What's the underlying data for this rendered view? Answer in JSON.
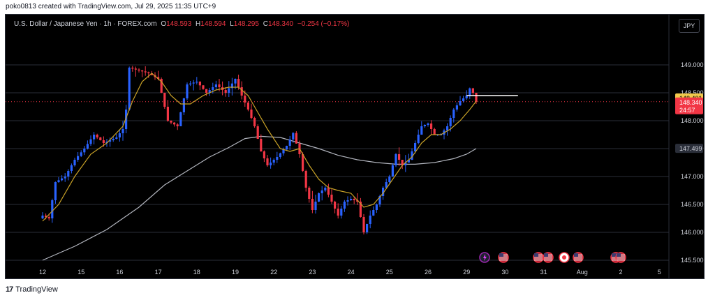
{
  "header": {
    "credit": "poko0813 created with TradingView.com, Jul 29, 2025 11:35 UTC+9"
  },
  "legend": {
    "symbol": "U.S. Dollar / Japanese Yen · 1h · FOREX.com",
    "o_label": "O",
    "o": "148.593",
    "h_label": "H",
    "h": "148.594",
    "l_label": "L",
    "l": "148.295",
    "c_label": "C",
    "c": "148.340",
    "change": "−0.254 (−0.17%)"
  },
  "currency_button": "JPY",
  "footer": {
    "brand": "TradingView",
    "brand_mark": "17"
  },
  "colors": {
    "background": "#000000",
    "up": "#2962ff",
    "down": "#f23645",
    "ma_fast": "#c9a227",
    "ma_slow": "#b2b5be",
    "grid": "#2a2e39",
    "marker_line": "#ffffff"
  },
  "price_labels": {
    "ma_fast_value": "148.401",
    "last_price": "148.340",
    "countdown": "24:57",
    "ma_slow_value": "147.499"
  },
  "event_icons": [
    "lightning-icon",
    "us-flag-icon",
    "us-flag-icon",
    "us-flag-icon",
    "jp-flag-icon",
    "us-flag-icon",
    "us-flag-icon",
    "us-flag-icon"
  ],
  "chart_data": {
    "type": "candlestick",
    "instrument": "U.S. Dollar / Japanese Yen",
    "timeframe": "1h",
    "source": "FOREX.com",
    "ylim": [
      145.45,
      149.6
    ],
    "y_ticks": [
      "149.000",
      "148.500",
      "148.000",
      "147.500",
      "147.000",
      "146.500",
      "146.000",
      "145.500"
    ],
    "x_ticks": [
      "12",
      "15",
      "16",
      "17",
      "18",
      "19",
      "22",
      "23",
      "24",
      "25",
      "26",
      "29",
      "30",
      "31",
      "Aug",
      "2",
      "5"
    ],
    "x_tick_index": [
      0,
      12,
      24,
      36,
      48,
      60,
      72,
      84,
      96,
      108,
      120,
      132,
      144,
      156,
      168,
      180,
      192
    ],
    "anchors": [
      [
        0,
        146.3
      ],
      [
        2,
        146.25
      ],
      [
        4,
        146.9
      ],
      [
        7,
        147.0
      ],
      [
        10,
        147.3
      ],
      [
        13,
        147.5
      ],
      [
        16,
        147.75
      ],
      [
        19,
        147.6
      ],
      [
        21,
        147.65
      ],
      [
        23,
        147.7
      ],
      [
        25,
        147.85
      ],
      [
        26,
        148.2
      ],
      [
        27,
        148.95
      ],
      [
        30,
        148.9
      ],
      [
        33,
        148.85
      ],
      [
        36,
        148.75
      ],
      [
        39,
        148.0
      ],
      [
        42,
        147.9
      ],
      [
        45,
        148.65
      ],
      [
        48,
        148.7
      ],
      [
        51,
        148.5
      ],
      [
        54,
        148.65
      ],
      [
        57,
        148.5
      ],
      [
        60,
        148.75
      ],
      [
        62,
        148.45
      ],
      [
        64,
        148.2
      ],
      [
        66,
        147.9
      ],
      [
        68,
        147.45
      ],
      [
        70,
        147.2
      ],
      [
        73,
        147.35
      ],
      [
        76,
        147.55
      ],
      [
        78,
        147.78
      ],
      [
        80,
        147.4
      ],
      [
        82,
        146.8
      ],
      [
        84,
        146.4
      ],
      [
        86,
        146.7
      ],
      [
        88,
        146.8
      ],
      [
        90,
        146.55
      ],
      [
        92,
        146.3
      ],
      [
        94,
        146.55
      ],
      [
        96,
        146.6
      ],
      [
        98,
        146.55
      ],
      [
        100,
        146.0
      ],
      [
        102,
        146.3
      ],
      [
        104,
        146.5
      ],
      [
        106,
        146.8
      ],
      [
        108,
        147.0
      ],
      [
        110,
        147.4
      ],
      [
        112,
        147.2
      ],
      [
        114,
        147.3
      ],
      [
        116,
        147.6
      ],
      [
        118,
        147.9
      ],
      [
        120,
        147.95
      ],
      [
        122,
        147.75
      ],
      [
        124,
        147.75
      ],
      [
        126,
        147.9
      ],
      [
        128,
        148.2
      ],
      [
        130,
        148.35
      ],
      [
        132,
        148.45
      ],
      [
        133,
        148.58
      ],
      [
        134,
        148.5
      ],
      [
        135,
        148.34
      ]
    ],
    "ma_fast": [
      [
        0,
        146.2
      ],
      [
        5,
        146.5
      ],
      [
        10,
        147.0
      ],
      [
        15,
        147.4
      ],
      [
        20,
        147.6
      ],
      [
        25,
        147.9
      ],
      [
        28,
        148.35
      ],
      [
        31,
        148.7
      ],
      [
        34,
        148.85
      ],
      [
        37,
        148.7
      ],
      [
        40,
        148.45
      ],
      [
        43,
        148.3
      ],
      [
        46,
        148.3
      ],
      [
        50,
        148.45
      ],
      [
        54,
        148.55
      ],
      [
        58,
        148.6
      ],
      [
        61,
        148.6
      ],
      [
        64,
        148.45
      ],
      [
        67,
        148.15
      ],
      [
        70,
        147.85
      ],
      [
        74,
        147.5
      ],
      [
        77,
        147.45
      ],
      [
        80,
        147.5
      ],
      [
        83,
        147.2
      ],
      [
        86,
        146.95
      ],
      [
        89,
        146.8
      ],
      [
        92,
        146.75
      ],
      [
        96,
        146.7
      ],
      [
        100,
        146.45
      ],
      [
        103,
        146.5
      ],
      [
        106,
        146.7
      ],
      [
        109,
        146.95
      ],
      [
        112,
        147.2
      ],
      [
        115,
        147.35
      ],
      [
        118,
        147.6
      ],
      [
        121,
        147.75
      ],
      [
        124,
        147.75
      ],
      [
        127,
        147.85
      ],
      [
        130,
        148.0
      ],
      [
        133,
        148.2
      ],
      [
        135,
        148.35
      ]
    ],
    "ma_slow": [
      [
        0,
        145.5
      ],
      [
        10,
        145.75
      ],
      [
        20,
        146.05
      ],
      [
        30,
        146.45
      ],
      [
        38,
        146.85
      ],
      [
        45,
        147.1
      ],
      [
        52,
        147.35
      ],
      [
        58,
        147.52
      ],
      [
        63,
        147.68
      ],
      [
        68,
        147.72
      ],
      [
        74,
        147.7
      ],
      [
        80,
        147.6
      ],
      [
        86,
        147.5
      ],
      [
        92,
        147.38
      ],
      [
        98,
        147.3
      ],
      [
        104,
        147.25
      ],
      [
        110,
        147.22
      ],
      [
        116,
        147.22
      ],
      [
        122,
        147.25
      ],
      [
        128,
        147.32
      ],
      [
        132,
        147.4
      ],
      [
        135,
        147.5
      ]
    ],
    "current_level_line": {
      "price": 148.45,
      "from_index": 132,
      "to_index": 148
    }
  }
}
